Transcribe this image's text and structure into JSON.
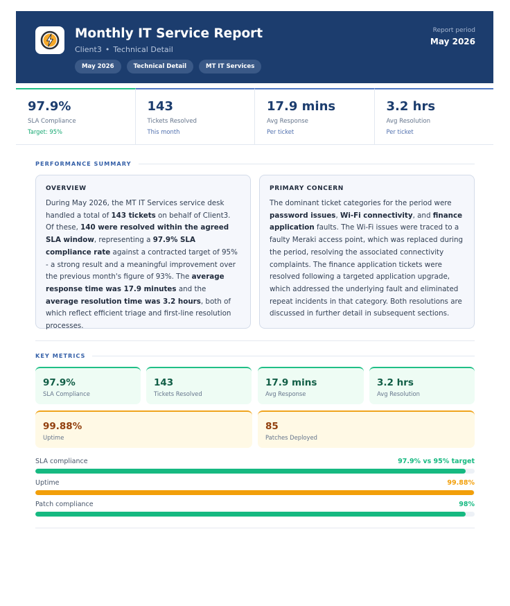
{
  "header": {
    "title": "Monthly IT Service Report",
    "client": "Client3",
    "subtitle_type": "Technical Detail",
    "tags": [
      "May 2026",
      "Technical Detail",
      "MT IT Services"
    ],
    "period_label": "Report period",
    "period_value": "May 2026",
    "logo_icon": "lightning-bolt-icon"
  },
  "stats": [
    {
      "value": "97.9%",
      "label": "SLA Compliance",
      "note": "Target: 95%"
    },
    {
      "value": "143",
      "label": "Tickets Resolved",
      "note": "This month"
    },
    {
      "value": "17.9 mins",
      "label": "Avg Response",
      "note": "Per ticket"
    },
    {
      "value": "3.2 hrs",
      "label": "Avg Resolution",
      "note": "Per ticket"
    }
  ],
  "performance": {
    "section_title": "PERFORMANCE SUMMARY",
    "overview_title": "OVERVIEW",
    "overview": [
      {
        "t": "During May 2026, the MT IT Services service desk handled a total of "
      },
      {
        "t": "143 tickets",
        "b": true
      },
      {
        "t": " on behalf of Client3. Of these, "
      },
      {
        "t": "140 were resolved within the agreed SLA window",
        "b": true
      },
      {
        "t": ", representing a "
      },
      {
        "t": "97.9% SLA compliance rate",
        "b": true
      },
      {
        "t": " against a contracted target of 95% - a strong result and a meaningful improvement over the previous month's figure of 93%. The "
      },
      {
        "t": "average response time was 17.9 minutes",
        "b": true
      },
      {
        "t": " and the "
      },
      {
        "t": "average resolution time was 3.2 hours",
        "b": true
      },
      {
        "t": ", both of which reflect efficient triage and first-line resolution processes."
      }
    ],
    "concern_title": "PRIMARY CONCERN",
    "concern": [
      {
        "t": "The dominant ticket categories for the period were "
      },
      {
        "t": "password issues",
        "b": true
      },
      {
        "t": ", "
      },
      {
        "t": "Wi-Fi connectivity",
        "b": true
      },
      {
        "t": ", and "
      },
      {
        "t": "finance application",
        "b": true
      },
      {
        "t": " faults. The Wi-Fi issues were traced to a faulty Meraki access point, which was replaced during the period, resolving the associated connectivity complaints. The finance application tickets were resolved following a targeted application upgrade, which addressed the underlying fault and eliminated repeat incidents in that category. Both resolutions are discussed in further detail in subsequent sections."
      }
    ]
  },
  "key_metrics": {
    "section_title": "KEY METRICS",
    "cards": [
      {
        "value": "97.9%",
        "label": "SLA Compliance"
      },
      {
        "value": "143",
        "label": "Tickets Resolved"
      },
      {
        "value": "17.9 mins",
        "label": "Avg Response"
      },
      {
        "value": "3.2 hrs",
        "label": "Avg Resolution"
      },
      {
        "value": "99.88%",
        "label": "Uptime"
      },
      {
        "value": "85",
        "label": "Patches Deployed"
      }
    ],
    "bars": [
      {
        "label": "SLA compliance",
        "value_text": "97.9% vs 95% target",
        "percent": 97.9,
        "color": "#16b981"
      },
      {
        "label": "Uptime",
        "value_text": "99.88%",
        "percent": 99.88,
        "color": "#f29f0a"
      },
      {
        "label": "Patch compliance",
        "value_text": "98%",
        "percent": 98,
        "color": "#16b981"
      }
    ]
  }
}
